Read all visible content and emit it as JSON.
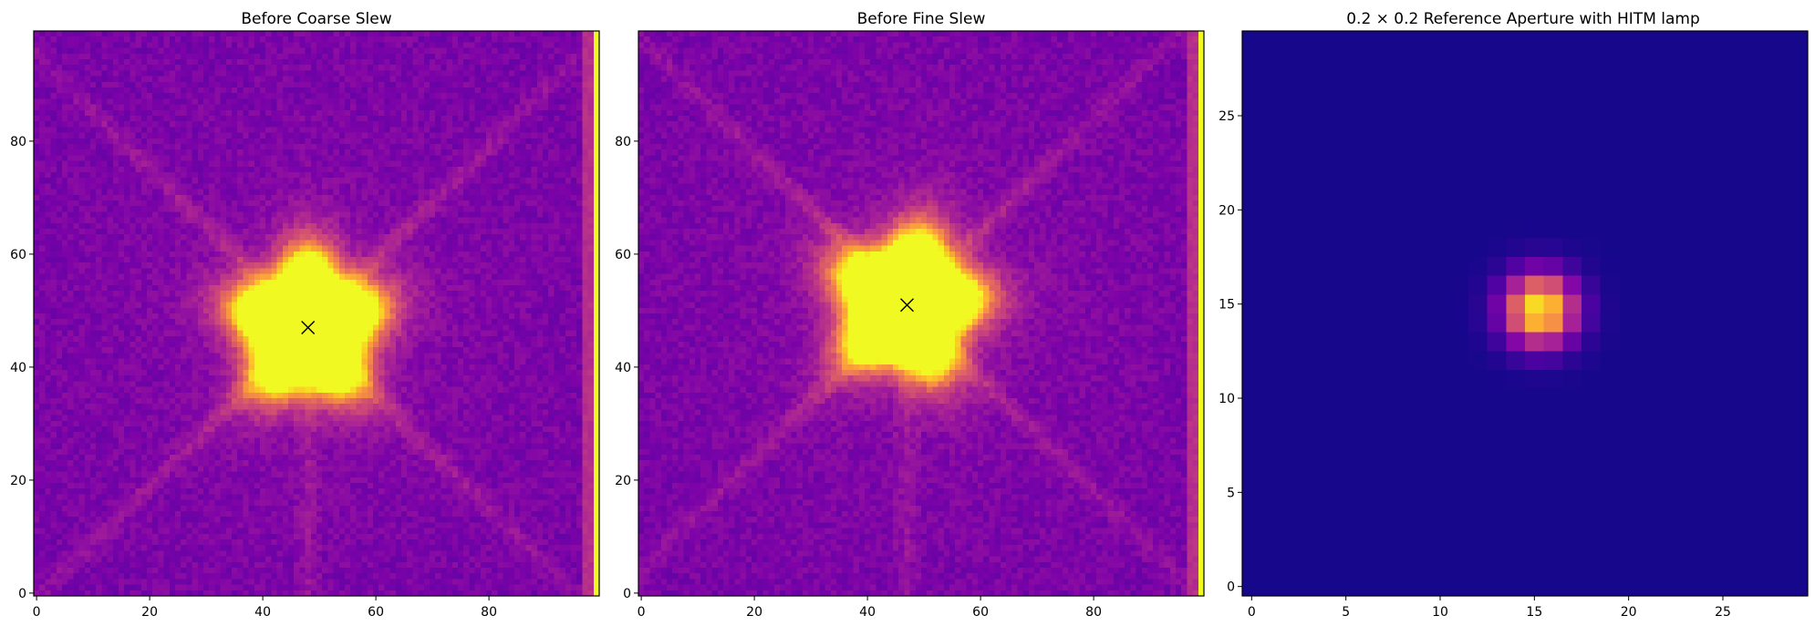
{
  "chart_data": [
    {
      "type": "heatmap",
      "title": "Before Coarse Slew",
      "xlim": [
        -0.5,
        99.5
      ],
      "ylim": [
        -0.5,
        99.5
      ],
      "xticks": [
        0,
        20,
        40,
        60,
        80
      ],
      "yticks": [
        0,
        20,
        40,
        60,
        80
      ],
      "colormap": "plasma",
      "source": {
        "center": [
          48,
          47
        ],
        "saturated_radius": 11
      },
      "marker": {
        "symbol": "x",
        "x": 48,
        "y": 47
      },
      "columns_bright": [
        97,
        98
      ],
      "columns_saturated": [
        99
      ],
      "spikes": true
    },
    {
      "type": "heatmap",
      "title": "Before Fine Slew",
      "xlim": [
        -0.5,
        99.5
      ],
      "ylim": [
        -0.5,
        99.5
      ],
      "xticks": [
        0,
        20,
        40,
        60,
        80
      ],
      "yticks": [
        0,
        20,
        40,
        60,
        80
      ],
      "colormap": "plasma",
      "source": {
        "center": [
          47,
          51
        ],
        "saturated_radius": 11
      },
      "marker": {
        "symbol": "x",
        "x": 47,
        "y": 51
      },
      "columns_bright": [
        97,
        98
      ],
      "columns_saturated": [
        99
      ],
      "spikes": true
    },
    {
      "type": "heatmap",
      "title": "0.2 × 0.2 Reference Aperture with HITM lamp",
      "xlim": [
        -0.5,
        29.5
      ],
      "ylim": [
        -0.5,
        29.5
      ],
      "xticks": [
        0,
        5,
        10,
        15,
        20,
        25
      ],
      "yticks": [
        0,
        5,
        10,
        15,
        20,
        25
      ],
      "colormap": "plasma",
      "source": {
        "center": [
          15.3,
          14.7
        ],
        "sigma": 1.3
      },
      "marker": null,
      "spikes": false
    }
  ]
}
